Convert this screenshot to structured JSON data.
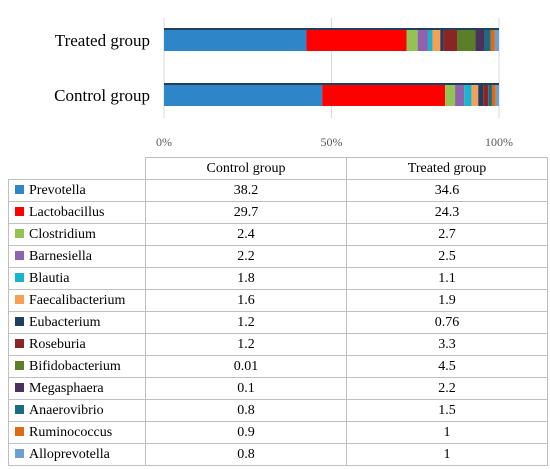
{
  "chart_data": {
    "type": "bar",
    "orientation": "horizontal",
    "stacked": true,
    "normalized": true,
    "categories": [
      "Treated group",
      "Control group"
    ],
    "xlim": [
      0,
      100
    ],
    "tick_labels": [
      "0%",
      "50%",
      "100%"
    ],
    "grid": true,
    "series": [
      {
        "name": "Prevotella",
        "color": "#2e86c8",
        "values": [
          34.6,
          38.2
        ]
      },
      {
        "name": "Lactobacillus",
        "color": "#ff0000",
        "values": [
          24.3,
          29.7
        ]
      },
      {
        "name": "Clostridium",
        "color": "#92c353",
        "values": [
          2.7,
          2.4
        ]
      },
      {
        "name": "Barnesiella",
        "color": "#8e62ad",
        "values": [
          2.5,
          2.2
        ]
      },
      {
        "name": "Blautia",
        "color": "#18b3cc",
        "values": [
          1.1,
          1.8
        ]
      },
      {
        "name": "Faecalibacterium",
        "color": "#f5a054",
        "values": [
          1.9,
          1.6
        ]
      },
      {
        "name": "Eubacterium",
        "color": "#1f3e63",
        "values": [
          0.76,
          1.2
        ]
      },
      {
        "name": "Roseburia",
        "color": "#8b2424",
        "values": [
          3.3,
          1.2
        ]
      },
      {
        "name": "Bifidobacterium",
        "color": "#5b7e2b",
        "values": [
          4.5,
          0.01
        ]
      },
      {
        "name": "Megasphaera",
        "color": "#4b325e",
        "values": [
          2.2,
          0.1
        ]
      },
      {
        "name": "Anaerovibrio",
        "color": "#1a6d80",
        "values": [
          1.5,
          0.8
        ]
      },
      {
        "name": "Ruminococcus",
        "color": "#e06a10",
        "values": [
          1,
          0.9
        ]
      },
      {
        "name": "Alloprevotella",
        "color": "#6f9fd0",
        "values": [
          1,
          0.8
        ]
      }
    ]
  },
  "table": {
    "headers": [
      "Control group",
      "Treated group"
    ],
    "rows": [
      {
        "name": "Prevotella",
        "control": "38.2",
        "treated": "34.6"
      },
      {
        "name": "Lactobacillus",
        "control": "29.7",
        "treated": "24.3"
      },
      {
        "name": "Clostridium",
        "control": "2.4",
        "treated": "2.7"
      },
      {
        "name": "Barnesiella",
        "control": "2.2",
        "treated": "2.5"
      },
      {
        "name": "Blautia",
        "control": "1.8",
        "treated": "1.1"
      },
      {
        "name": "Faecalibacterium",
        "control": "1.6",
        "treated": "1.9"
      },
      {
        "name": "Eubacterium",
        "control": "1.2",
        "treated": "0.76"
      },
      {
        "name": "Roseburia",
        "control": "1.2",
        "treated": "3.3"
      },
      {
        "name": "Bifidobacterium",
        "control": "0.01",
        "treated": "4.5"
      },
      {
        "name": "Megasphaera",
        "control": "0.1",
        "treated": "2.2"
      },
      {
        "name": "Anaerovibrio",
        "control": "0.8",
        "treated": "1.5"
      },
      {
        "name": "Ruminococcus",
        "control": "0.9",
        "treated": "1"
      },
      {
        "name": "Alloprevotella",
        "control": "0.8",
        "treated": "1"
      }
    ]
  }
}
